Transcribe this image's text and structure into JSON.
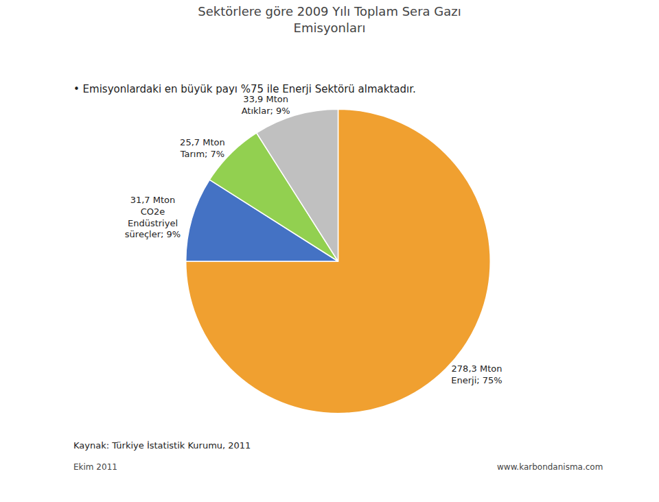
{
  "chart_data": {
    "type": "pie",
    "title": "Sektörlere göre 2009 Yılı Toplam Sera Gazı\nEmisyonları",
    "subtitle": "• Emisyonlardaki en büyük payı %75 ile Enerji Sektörü almaktadır.",
    "categories": [
      "278,3 Mton\nEnerji; 75%",
      "31,7 Mton\nCO2e\nEndüstriyel\nsüreçler; 9%",
      "25,7 Mton\nTarım; 7%",
      "33,9 Mton\nAtıklar; 9%"
    ],
    "values": [
      75,
      9,
      7,
      9
    ],
    "colors": [
      "#F0A030",
      "#4472C4",
      "#92D050",
      "#C0C0C0"
    ],
    "data_labels": true,
    "legend": false,
    "annotations": [
      "Kaynak: Türkiye İstatistik Kurumu, 2011",
      "Ekim 2011",
      "www.karbondanisma.com"
    ]
  }
}
